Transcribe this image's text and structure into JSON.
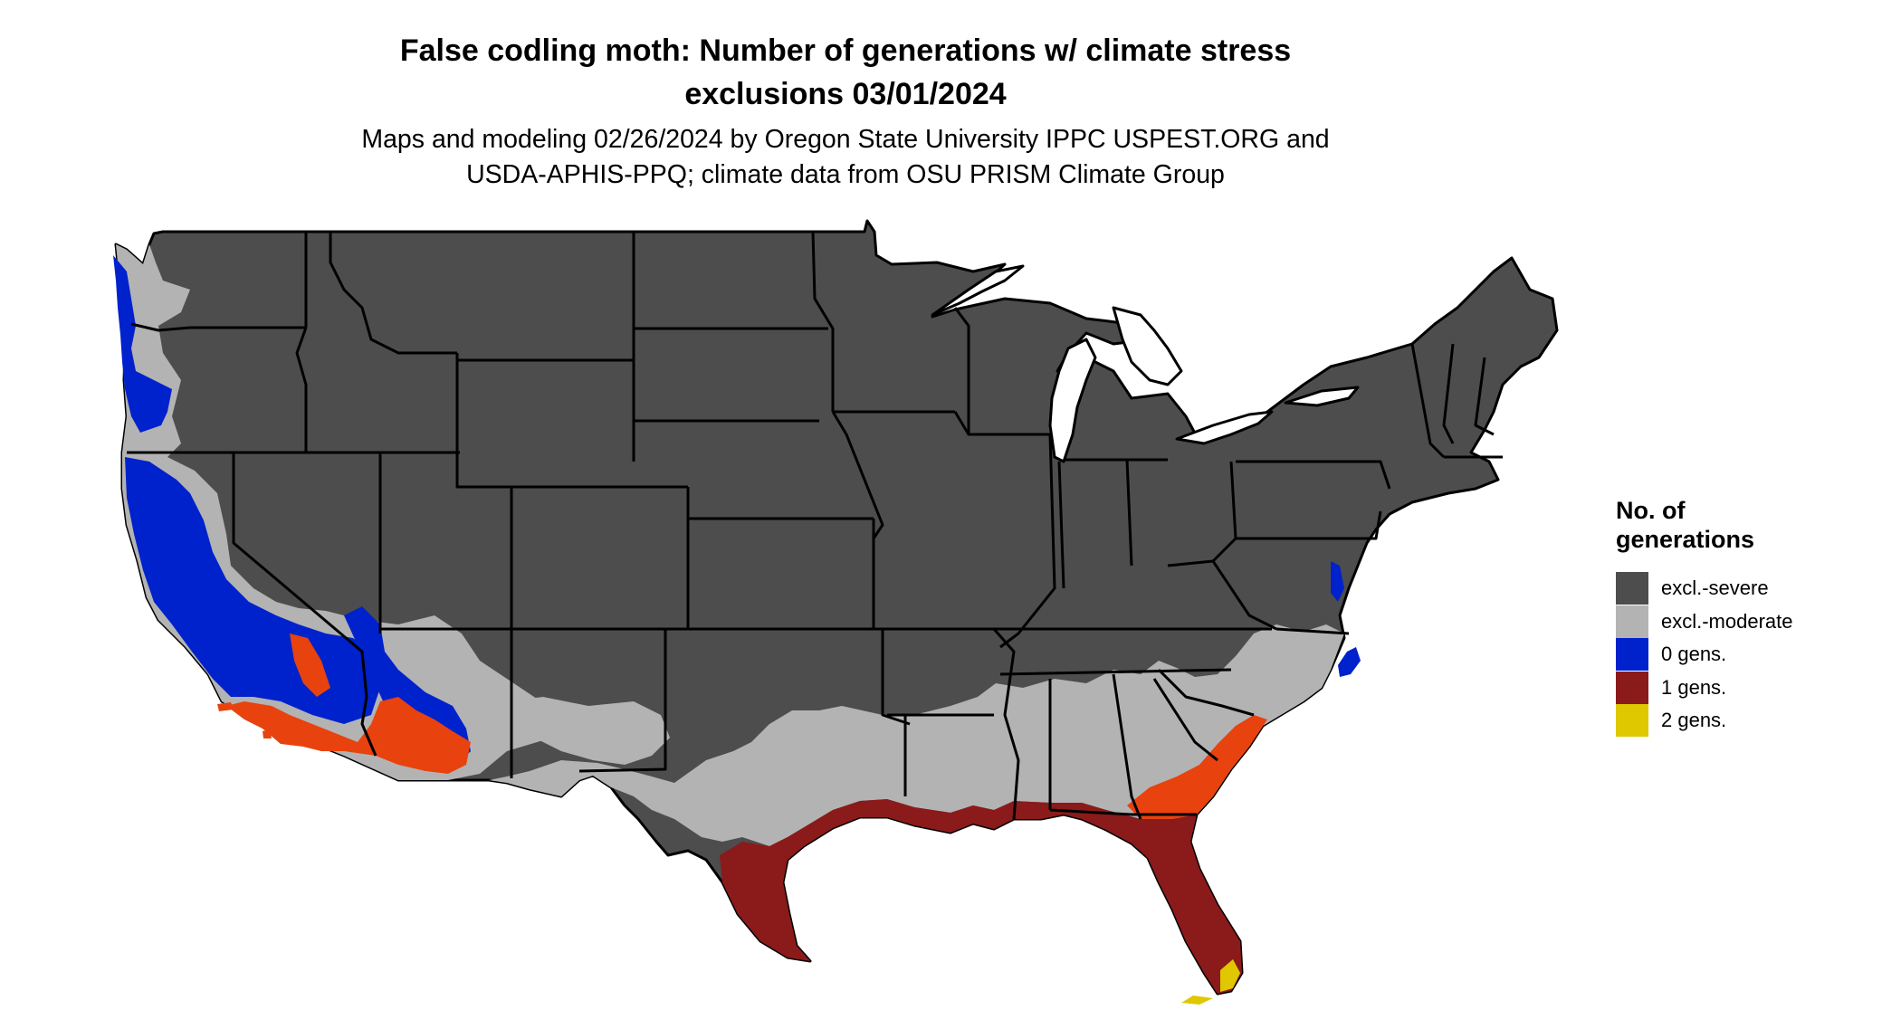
{
  "title": {
    "line1": "False codling moth: Number of generations w/ climate stress",
    "line2": "exclusions 03/01/2024"
  },
  "subtitle": {
    "line1": "Maps and modeling 02/26/2024 by Oregon State University IPPC USPEST.ORG and",
    "line2": "USDA-APHIS-PPQ; climate data from OSU PRISM Climate Group"
  },
  "legend": {
    "title_line1": "No. of",
    "title_line2": "generations",
    "items": [
      {
        "label": "excl.-severe",
        "color": "#4d4d4d"
      },
      {
        "label": "excl.-moderate",
        "color": "#b3b3b3"
      },
      {
        "label": "0 gens.",
        "color": "#0022cc"
      },
      {
        "label": "1 gens.",
        "color": "#8b1a1a"
      },
      {
        "label": "2 gens.",
        "color": "#e0c800"
      }
    ]
  },
  "colors": {
    "severe": "#4d4d4d",
    "moderate": "#b3b3b3",
    "zero": "#0022cc",
    "one": "#8b1a1a",
    "one_light": "#e8420f",
    "two": "#e0c800",
    "border": "#000000"
  }
}
